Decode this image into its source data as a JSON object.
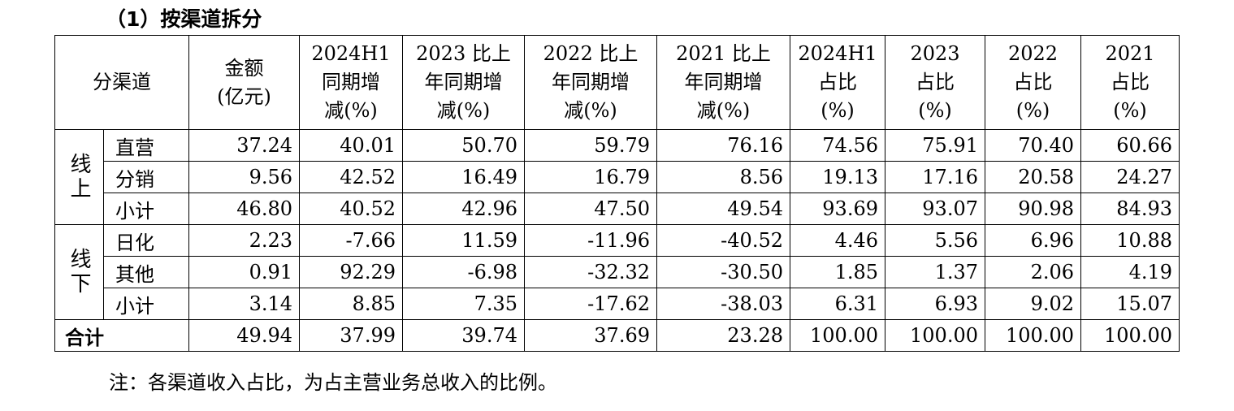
{
  "heading": "（1）按渠道拆分",
  "table": {
    "header": [
      [
        "分渠道"
      ],
      [
        "金额",
        "(亿元)"
      ],
      [
        "2024H1",
        "同期增",
        "减(%)"
      ],
      [
        "2023 比上",
        "年同期增",
        "减(%)"
      ],
      [
        "2022 比上",
        "年同期增",
        "减(%)"
      ],
      [
        "2021 比上",
        "年同期增",
        "减(%)"
      ],
      [
        "2024H1",
        "占比",
        "(%)"
      ],
      [
        "2023",
        "占比",
        "(%)"
      ],
      [
        "2022",
        "占比",
        "(%)"
      ],
      [
        "2021",
        "占比",
        "(%)"
      ]
    ],
    "groups": [
      {
        "label": "线上",
        "rows": [
          {
            "name": "直营",
            "cells": [
              "37.24",
              "40.01",
              "50.70",
              "59.79",
              "76.16",
              "74.56",
              "75.91",
              "70.40",
              "60.66"
            ]
          },
          {
            "name": "分销",
            "cells": [
              "9.56",
              "42.52",
              "16.49",
              "16.79",
              "8.56",
              "19.13",
              "17.16",
              "20.58",
              "24.27"
            ]
          },
          {
            "name": "小计",
            "cells": [
              "46.80",
              "40.52",
              "42.96",
              "47.50",
              "49.54",
              "93.69",
              "93.07",
              "90.98",
              "84.93"
            ]
          }
        ]
      },
      {
        "label": "线下",
        "rows": [
          {
            "name": "日化",
            "cells": [
              "2.23",
              "-7.66",
              "11.59",
              "-11.96",
              "-40.52",
              "4.46",
              "5.56",
              "6.96",
              "10.88"
            ]
          },
          {
            "name": "其他",
            "cells": [
              "0.91",
              "92.29",
              "-6.98",
              "-32.32",
              "-30.50",
              "1.85",
              "1.37",
              "2.06",
              "4.19"
            ]
          },
          {
            "name": "小计",
            "cells": [
              "3.14",
              "8.85",
              "7.35",
              "-17.62",
              "-38.03",
              "6.31",
              "6.93",
              "9.02",
              "15.07"
            ]
          }
        ]
      }
    ],
    "total": {
      "name": "合计",
      "cells": [
        "49.94",
        "37.99",
        "39.74",
        "37.69",
        "23.28",
        "100.00",
        "100.00",
        "100.00",
        "100.00"
      ]
    }
  },
  "note": "注：各渠道收入占比，为占主营业务总收入的比例。"
}
